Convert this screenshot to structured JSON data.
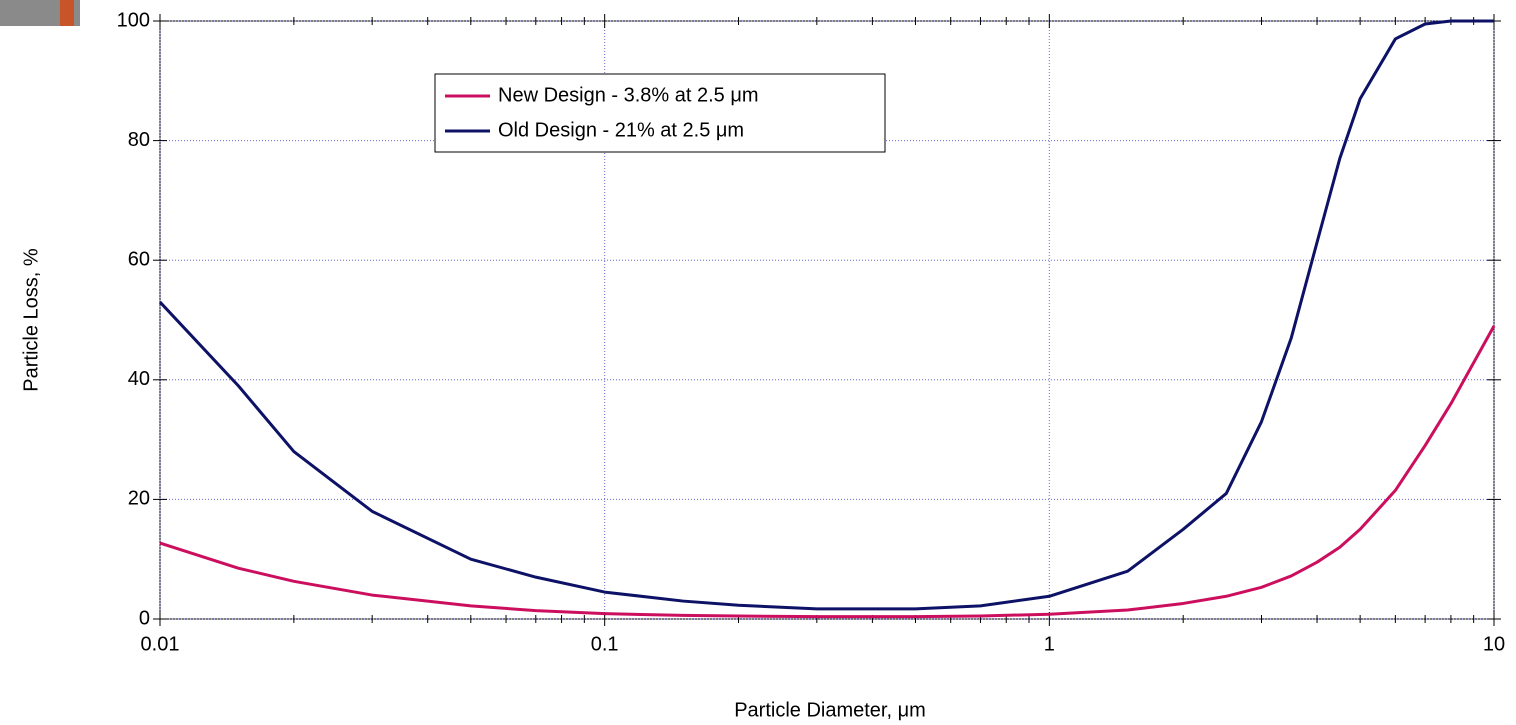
{
  "chart_data": {
    "type": "line",
    "xlabel": "Particle Diameter, μm",
    "ylabel": "Particle Loss, %",
    "xscale": "log",
    "x": [
      0.01,
      0.015,
      0.02,
      0.03,
      0.05,
      0.07,
      0.1,
      0.15,
      0.2,
      0.3,
      0.5,
      0.7,
      1,
      1.5,
      2,
      2.5,
      3,
      3.5,
      4,
      4.5,
      5,
      6,
      7,
      8,
      10
    ],
    "series": [
      {
        "name": "New Design - 3.8% at 2.5 μm",
        "color": "#cc0e5e",
        "values": [
          12.7,
          8.5,
          6.3,
          4,
          2.2,
          1.4,
          0.9,
          0.6,
          0.5,
          0.4,
          0.4,
          0.5,
          0.8,
          1.5,
          2.6,
          3.8,
          5.3,
          7.2,
          9.5,
          12,
          15,
          21.5,
          29,
          36,
          49
        ]
      },
      {
        "name": "Old Design - 21% at 2.5 μm",
        "color": "#0d1266",
        "values": [
          53,
          39,
          28,
          18,
          10,
          7,
          4.5,
          3,
          2.3,
          1.7,
          1.7,
          2.2,
          3.8,
          8,
          15,
          21,
          33,
          47,
          63,
          77,
          87,
          97,
          99.5,
          100,
          100
        ]
      }
    ],
    "xlim": [
      0.01,
      10
    ],
    "xticks": [
      0.01,
      0.1,
      1,
      10
    ],
    "ylim": [
      0,
      100
    ],
    "yticks": [
      0,
      20,
      40,
      60,
      80,
      100
    ],
    "grid": true,
    "legend": "upper center"
  }
}
